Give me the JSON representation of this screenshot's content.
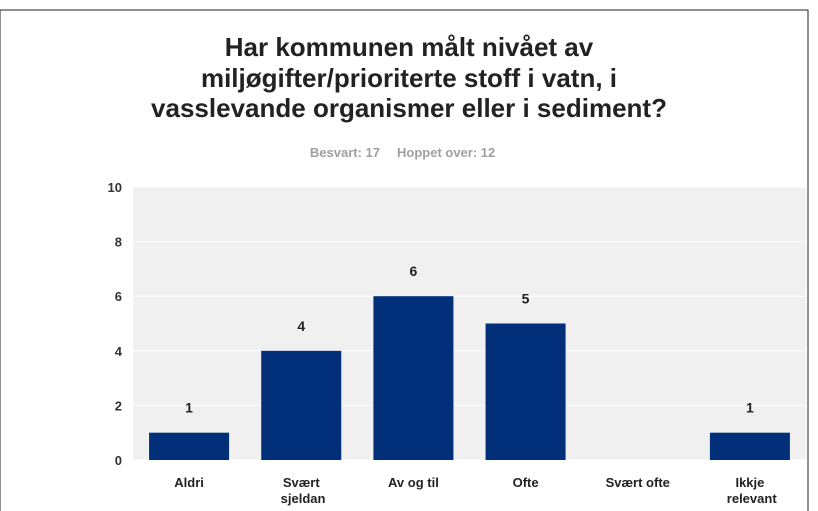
{
  "chart_data": {
    "type": "bar",
    "title": [
      "Har kommunen målt nivået av",
      "miljøgifter/prioriterte stoff i vatn, i",
      "vasslevande organismer eller i sediment?"
    ],
    "answered": "Besvart: 17",
    "skipped": "Hoppet over: 12",
    "categories": [
      "Aldri",
      "Svært sjeldan",
      "Av og til",
      "Ofte",
      "Svært ofte",
      "Ikkje relevant"
    ],
    "values": [
      1,
      4,
      6,
      5,
      0,
      1
    ],
    "color": "#022f79",
    "ylim": [
      0,
      10
    ],
    "yticks": [
      0,
      2,
      4,
      6,
      8,
      10
    ],
    "grid": true
  }
}
